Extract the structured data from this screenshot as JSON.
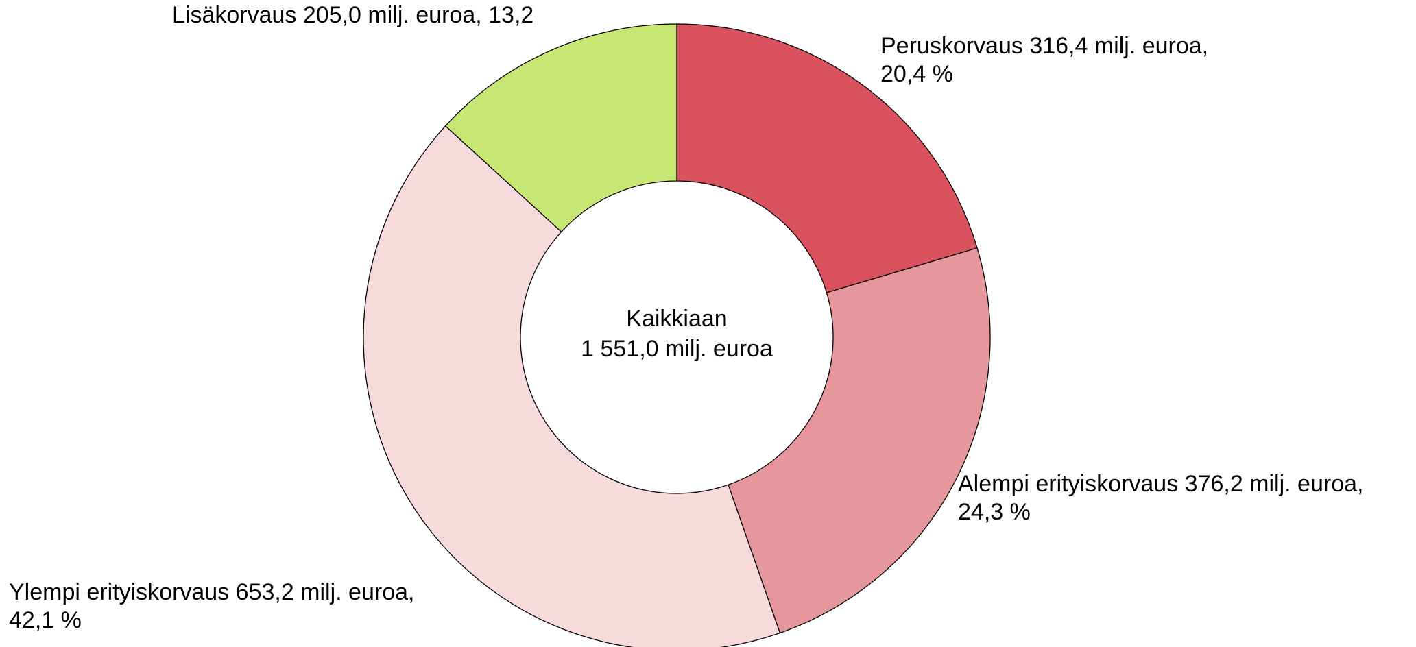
{
  "chart_data": {
    "type": "donut",
    "values": [
      316.4,
      376.2,
      653.2,
      205.0
    ],
    "value_labels": [
      [
        "Peruskorvaus 316,4 milj. euroa,",
        "20,4 %"
      ],
      [
        "Alempi erityiskorvaus 376,2 milj. euroa,",
        "24,3 %"
      ],
      [
        "Ylempi erityiskorvaus 653,2 milj. euroa,",
        "42,1 %"
      ],
      [
        "Lisäkorvaus 205,0 milj. euroa, 13,2"
      ]
    ],
    "colors": [
      "#d9525e",
      "#e6979c",
      "#f6dadc",
      "#c8e673"
    ],
    "center_label": [
      "Kaikkiaan",
      "1 551,0 milj. euroa"
    ]
  }
}
